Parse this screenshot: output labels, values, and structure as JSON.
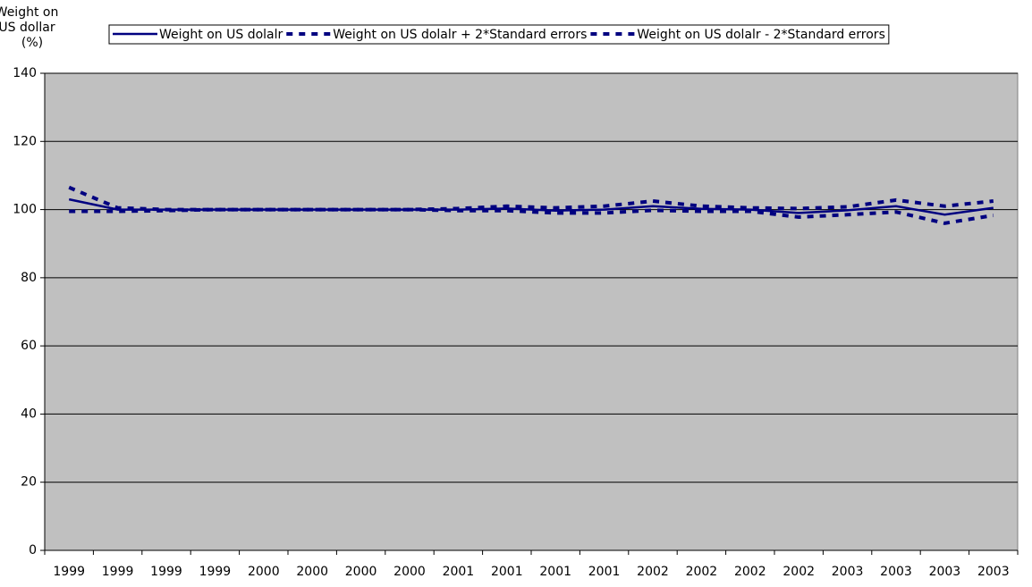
{
  "chart_data": {
    "type": "line",
    "ylabel_lines": [
      "Weight on",
      "US dollar",
      "(%)"
    ],
    "categories": [
      "1999",
      "1999",
      "1999",
      "1999",
      "2000",
      "2000",
      "2000",
      "2000",
      "2001",
      "2001",
      "2001",
      "2001",
      "2002",
      "2002",
      "2002",
      "2002",
      "2003",
      "2003",
      "2003",
      "2003"
    ],
    "series": [
      {
        "name": "Weight on US dolalr",
        "color": "#000080",
        "line_style": "solid",
        "values": [
          103,
          100,
          100,
          100,
          100,
          100,
          100,
          100,
          100,
          100.3,
          99.7,
          100,
          101,
          100.2,
          100,
          99,
          99.8,
          101,
          98.5,
          100.5
        ]
      },
      {
        "name": "Weight on US dolalr + 2*Standard errors",
        "color": "#000080",
        "line_style": "dashed",
        "values": [
          106.5,
          100.5,
          100,
          100,
          100,
          100,
          100,
          100,
          100.3,
          101,
          100.5,
          101,
          102.5,
          101,
          100.5,
          100.3,
          100.8,
          102.8,
          101,
          102.5
        ]
      },
      {
        "name": "Weight on US dolalr - 2*Standard errors",
        "color": "#000080",
        "line_style": "dashed",
        "values": [
          99.5,
          99.5,
          99.7,
          100,
          100,
          100,
          100,
          100,
          99.7,
          99.7,
          99,
          99,
          99.8,
          99.5,
          99.5,
          97.8,
          98.5,
          99.3,
          96,
          98.3
        ]
      }
    ],
    "ylim": [
      0,
      140
    ],
    "yticks": [
      0,
      20,
      40,
      60,
      80,
      100,
      120,
      140
    ],
    "grid": true,
    "plot_background": "#c0c0c0"
  }
}
